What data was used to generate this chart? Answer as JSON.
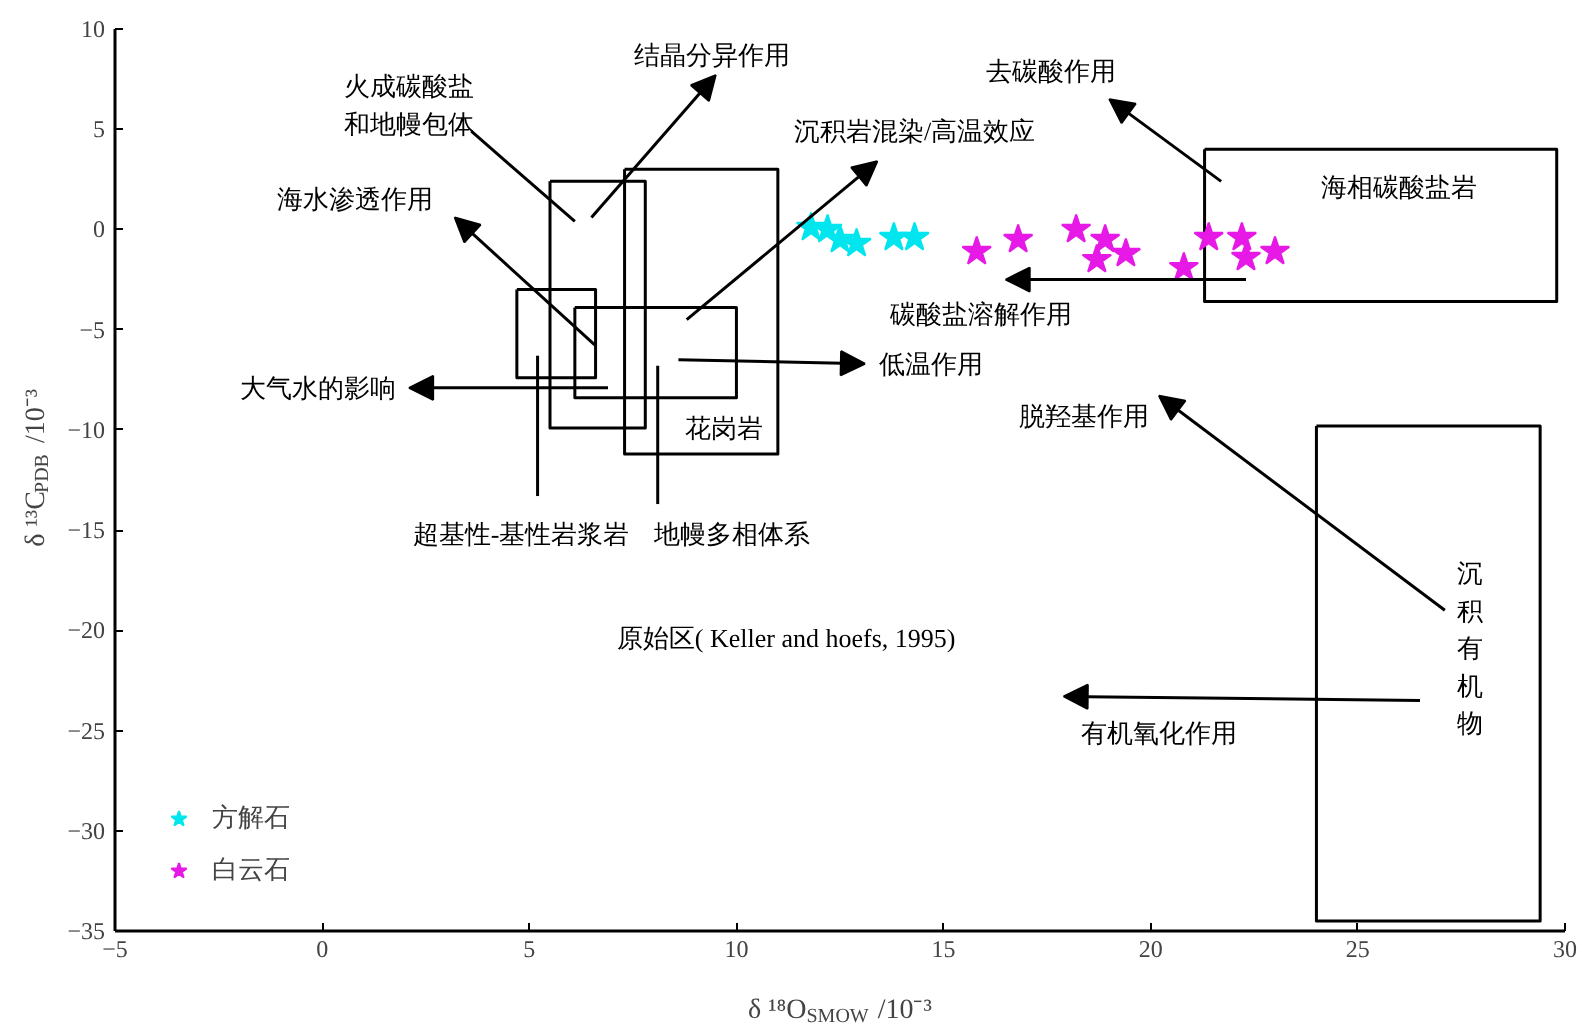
{
  "chart_data": {
    "type": "scatter",
    "xlabel": "δ ¹⁸O$_{SMOW}$/10⁻³",
    "ylabel": "δ ¹³C$_{PDB}$/10⁻³",
    "xlim": [
      -5,
      30
    ],
    "xticks": [
      -5,
      0,
      5,
      10,
      15,
      20,
      25,
      30
    ],
    "ylim": [
      -35,
      10
    ],
    "yticks": [
      -35,
      -30,
      -25,
      -20,
      -15,
      -10,
      -5,
      0,
      5,
      10
    ],
    "legend": "bottom left",
    "marker": "star",
    "series": [
      {
        "name": "方解石",
        "color": "#00e5ee",
        "x": [
          11.8,
          12.2,
          12.5,
          12.9,
          13.8,
          14.3
        ],
        "values": [
          0.1,
          0,
          -0.5,
          -0.7,
          -0.4,
          -0.4
        ]
      },
      {
        "name": "白云石",
        "color": "#e619e6",
        "x": [
          15.8,
          16.8,
          18.2,
          18.9,
          18.7,
          19.4,
          20.8,
          21.4,
          22.2,
          22.3,
          23.0
        ],
        "values": [
          -1.1,
          -0.5,
          0,
          -0.5,
          -1.5,
          -1.2,
          -1.9,
          -0.4,
          -0.4,
          -1.4,
          -1.1
        ]
      }
    ],
    "annotations": [
      "火成碳酸盐和地幔包体",
      "结晶分异作用",
      "沉积岩混染/高温效应",
      "海水渗透作用",
      "去碳酸作用",
      "海相碳酸盐岩",
      "碳酸盐溶解作用",
      "大气水的影响",
      "低温作用",
      "花岗岩",
      "脱羟基作用",
      "超基性-基性岩浆岩",
      "地幔多相体系",
      "原始区( Keller and hoefs, 1995)",
      "沉积有机物",
      "有机氧化作用"
    ]
  }
}
